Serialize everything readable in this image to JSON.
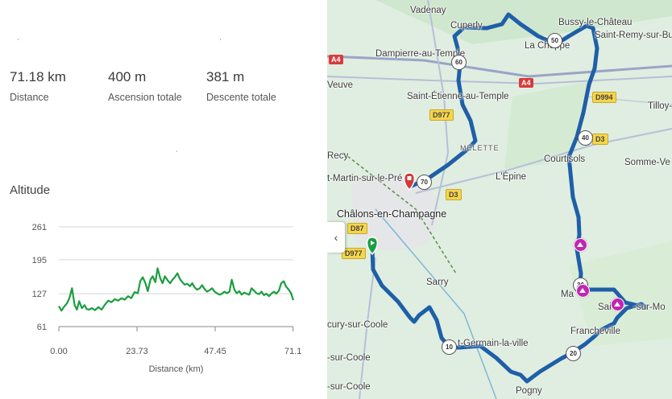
{
  "stats": {
    "distance": {
      "value": "71.18 km",
      "label": "Distance"
    },
    "ascent": {
      "value": "400 m",
      "label": "Ascension totale"
    },
    "descent": {
      "value": "381 m",
      "label": "Descente totale"
    }
  },
  "altitude_title": "Altitude",
  "chart_data": {
    "type": "area",
    "title": "Altitude",
    "xlabel": "Distance (km)",
    "ylabel": "",
    "x_ticks": [
      "0.00",
      "23.73",
      "47.45",
      "71.1"
    ],
    "y_ticks": [
      "261",
      "195",
      "127",
      "61"
    ],
    "xlim": [
      0,
      71.18
    ],
    "ylim": [
      61,
      261
    ],
    "grid": true,
    "series": [
      {
        "color": "#1a9e3f",
        "x": [
          0.0,
          0.8,
          1.5,
          2.5,
          3.2,
          4.0,
          4.8,
          5.5,
          6.2,
          7.0,
          7.8,
          8.5,
          9.2,
          10.0,
          11.0,
          12.0,
          13.0,
          14.0,
          15.0,
          16.0,
          17.0,
          18.0,
          19.0,
          20.0,
          21.0,
          22.0,
          23.0,
          24.0,
          24.7,
          25.5,
          26.3,
          27.0,
          27.8,
          28.5,
          29.3,
          30.0,
          30.8,
          31.5,
          32.2,
          33.0,
          33.8,
          34.5,
          35.2,
          36.0,
          36.8,
          37.5,
          38.2,
          39.0,
          39.8,
          40.5,
          41.3,
          42.0,
          42.8,
          43.5,
          44.3,
          45.0,
          45.8,
          46.5,
          47.3,
          48.0,
          48.8,
          49.5,
          50.3,
          51.0,
          51.8,
          52.5,
          53.3,
          54.0,
          54.8,
          55.5,
          56.3,
          57.0,
          57.8,
          58.5,
          59.3,
          60.0,
          60.8,
          61.5,
          62.3,
          63.0,
          63.8,
          64.5,
          65.3,
          66.0,
          66.8,
          67.5,
          68.3,
          69.0,
          69.8,
          70.5,
          71.18
        ],
        "y": [
          102,
          93,
          100,
          108,
          118,
          138,
          104,
          95,
          112,
          98,
          104,
          96,
          95,
          98,
          94,
          100,
          95,
          105,
          113,
          110,
          116,
          113,
          118,
          115,
          122,
          118,
          130,
          128,
          152,
          160,
          148,
          132,
          155,
          162,
          150,
          178,
          158,
          148,
          162,
          154,
          148,
          155,
          160,
          168,
          156,
          150,
          145,
          147,
          142,
          148,
          139,
          135,
          138,
          144,
          136,
          131,
          134,
          138,
          131,
          128,
          125,
          127,
          131,
          128,
          131,
          155,
          135,
          128,
          132,
          125,
          129,
          127,
          125,
          138,
          133,
          128,
          126,
          131,
          124,
          127,
          122,
          127,
          131,
          127,
          133,
          148,
          152,
          141,
          135,
          128,
          114
        ]
      }
    ]
  },
  "map": {
    "collapse_icon": "chevron-left-icon",
    "route_color": "#2a6bbf",
    "labels": {
      "vadenay": "Vadenay",
      "cuperly": "Cuperly",
      "bussy": "Bussy-le-Château",
      "saint_remy": "Saint-Remy-sur-Bu",
      "la_cheppe": "La Cheppe",
      "dampierre": "Dampierre-au-Temple",
      "veuve": "Veuve",
      "saint_etienne": "Saint-Étienne-au-Temple",
      "tilloy": "Tilloy-",
      "recy": "Recy",
      "melette": "MÉLETTE",
      "courtisols": "Courtisols",
      "somme_vesle": "Somme-Ve",
      "saint_martin": "t-Martin-sur-le-Pré",
      "lepine": "L'Épine",
      "chalons": "Châlons-en-Champagne",
      "sarry": "Sarry",
      "marson": "Ma",
      "saint_jean": "Sai",
      "saint_jean_end": "-sur-Mo",
      "francheville": "Francheville",
      "coolus": "cury-sur-Coole",
      "st_germain": "t-Germain-la-ville",
      "sur_coole": "-sur-Coole",
      "sur_coole2": "-sur-Coole",
      "pogny": "Pogny"
    },
    "roads": {
      "a4_west": "A4",
      "a4_east": "A4",
      "d994": "D994",
      "d977_north": "D977",
      "d3_east": "D3",
      "d3_mid": "D3",
      "d87": "D87",
      "d977_south": "D977"
    },
    "km_markers": [
      "50",
      "60",
      "40",
      "70",
      "30",
      "20",
      "10"
    ]
  }
}
